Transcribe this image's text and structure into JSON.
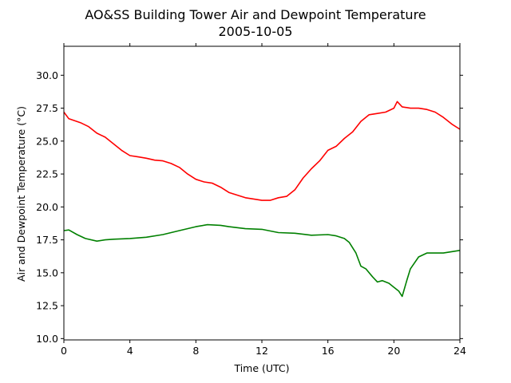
{
  "chart_data": {
    "type": "line",
    "title": "AO&SS Building Tower Air and Dewpoint Temperature",
    "subtitle": "2005-10-05",
    "xlabel": "Time (UTC)",
    "ylabel": "Air and Dewpoint Temperature (°C)",
    "xlim": [
      0,
      24
    ],
    "ylim": [
      9.9,
      32.2
    ],
    "xticks": [
      0,
      4,
      8,
      12,
      16,
      20,
      24
    ],
    "xtick_labels": [
      "0",
      "4",
      "8",
      "12",
      "16",
      "20",
      "24"
    ],
    "yticks": [
      10.0,
      12.5,
      15.0,
      17.5,
      20.0,
      22.5,
      25.0,
      27.5,
      30.0
    ],
    "ytick_labels": [
      "10.0",
      "12.5",
      "15.0",
      "17.5",
      "20.0",
      "22.5",
      "25.0",
      "27.5",
      "30.0"
    ],
    "grid": false,
    "legend": "none",
    "series": [
      {
        "color": "#ff0000",
        "x": [
          0,
          0.3,
          1,
          1.5,
          2,
          2.5,
          3,
          3.5,
          4,
          4.5,
          5,
          5.5,
          6,
          6.5,
          7,
          7.5,
          8,
          8.5,
          9,
          9.5,
          10,
          10.5,
          11,
          11.5,
          12,
          12.5,
          13,
          13.5,
          14,
          14.5,
          15,
          15.5,
          16,
          16.5,
          17,
          17.5,
          18,
          18.5,
          19,
          19.5,
          20,
          20.2,
          20.5,
          21,
          21.5,
          22,
          22.5,
          23,
          23.5,
          24
        ],
        "y": [
          27.2,
          26.7,
          26.4,
          26.1,
          25.6,
          25.3,
          24.8,
          24.3,
          23.9,
          23.8,
          23.7,
          23.55,
          23.5,
          23.3,
          23.0,
          22.5,
          22.1,
          21.9,
          21.8,
          21.5,
          21.1,
          20.9,
          20.7,
          20.6,
          20.5,
          20.5,
          20.7,
          20.8,
          21.3,
          22.2,
          22.9,
          23.5,
          24.3,
          24.6,
          25.2,
          25.7,
          26.5,
          27.0,
          27.1,
          27.2,
          27.5,
          28.0,
          27.6,
          27.5,
          27.5,
          27.4,
          27.2,
          26.8,
          26.3,
          25.9
        ]
      },
      {
        "color": "#008000",
        "x": [
          0,
          0.3,
          0.8,
          1.3,
          2,
          2.5,
          3,
          4,
          5,
          6,
          7,
          8,
          8.7,
          9.5,
          10,
          11,
          12,
          13,
          14,
          15,
          16,
          16.5,
          17,
          17.3,
          17.7,
          18,
          18.3,
          18.7,
          19,
          19.3,
          19.7,
          20,
          20.3,
          20.5,
          20.8,
          21,
          21.5,
          22,
          23,
          23.5,
          24
        ],
        "y": [
          18.2,
          18.25,
          17.9,
          17.6,
          17.4,
          17.5,
          17.55,
          17.6,
          17.7,
          17.9,
          18.2,
          18.5,
          18.65,
          18.6,
          18.5,
          18.35,
          18.3,
          18.05,
          18.0,
          17.85,
          17.9,
          17.8,
          17.6,
          17.3,
          16.5,
          15.5,
          15.3,
          14.7,
          14.3,
          14.4,
          14.2,
          13.9,
          13.6,
          13.2,
          14.5,
          15.3,
          16.2,
          16.5,
          16.5,
          16.6,
          16.7
        ]
      }
    ]
  }
}
